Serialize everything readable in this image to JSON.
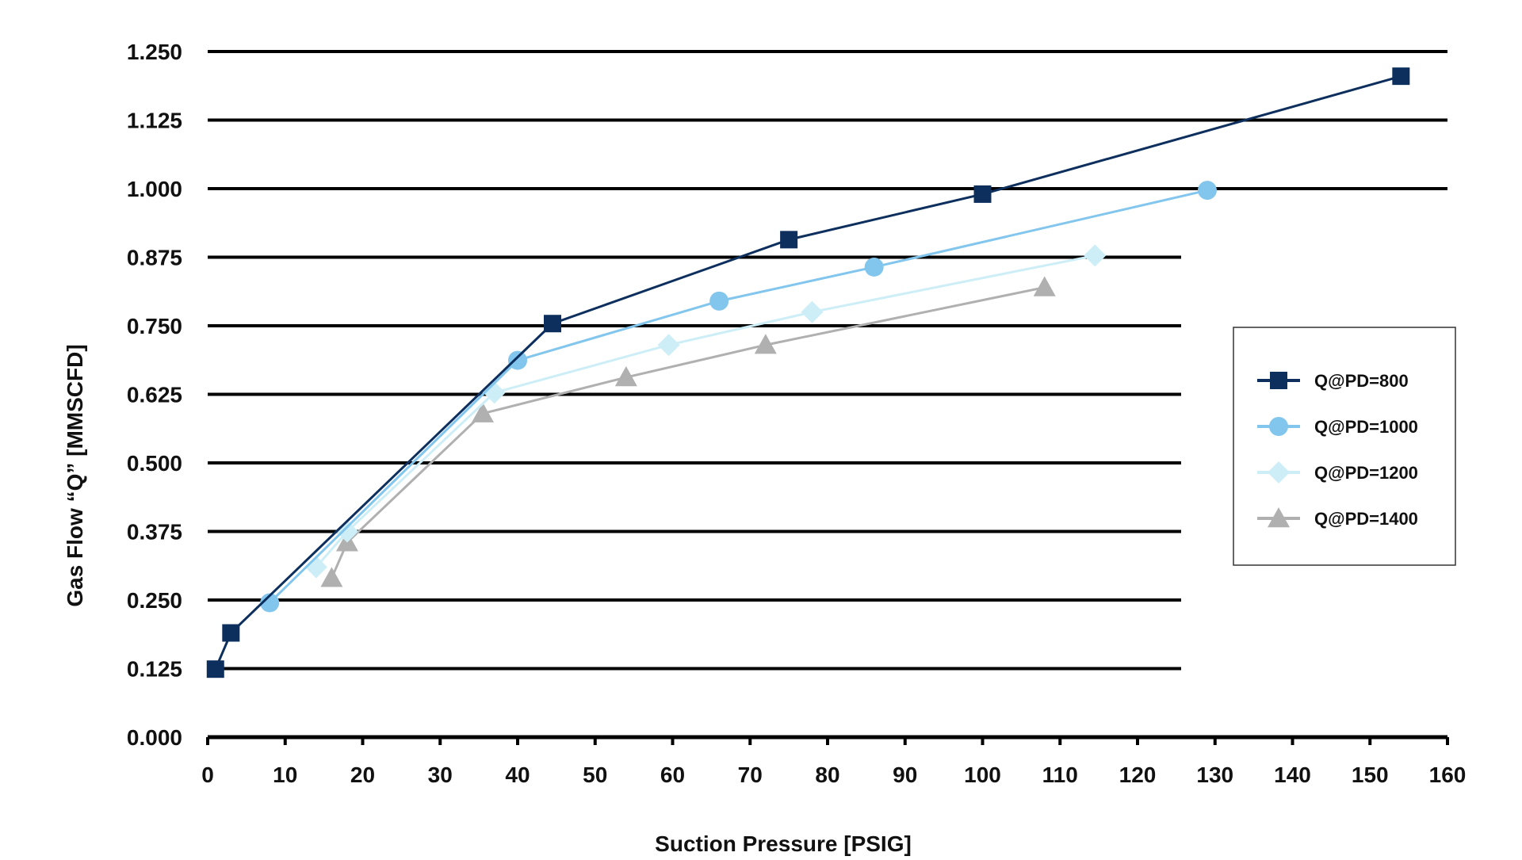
{
  "chart_data": {
    "type": "line",
    "title": "",
    "xlabel": "Suction Pressure [PSIG]",
    "ylabel": "Gas Flow “Q” [MMSCFD]",
    "xlim": [
      0,
      160
    ],
    "ylim": [
      0,
      1.25
    ],
    "xticks": [
      "0",
      "10",
      "20",
      "30",
      "40",
      "50",
      "60",
      "70",
      "80",
      "90",
      "100",
      "110",
      "120",
      "130",
      "140",
      "150",
      "160"
    ],
    "yticks": [
      "0.000",
      "0.125",
      "0.250",
      "0.375",
      "0.500",
      "0.625",
      "0.750",
      "0.875",
      "1.000",
      "1.125",
      "1.250"
    ],
    "grid": "horizontal",
    "legend_position": "right",
    "series": [
      {
        "name": "Q@PD=800",
        "color": "#0d2f5e",
        "marker": "square",
        "x": [
          1,
          3,
          44.5,
          75,
          100,
          154
        ],
        "y": [
          0.124,
          0.19,
          0.754,
          0.907,
          0.99,
          1.205
        ]
      },
      {
        "name": "Q@PD=1000",
        "color": "#82c6ee",
        "marker": "circle",
        "x": [
          8,
          40,
          66,
          86,
          129
        ],
        "y": [
          0.245,
          0.687,
          0.795,
          0.857,
          0.997
        ]
      },
      {
        "name": "Q@PD=1200",
        "color": "#cdeef7",
        "marker": "diamond",
        "x": [
          14,
          18,
          37,
          59.5,
          78,
          114.5
        ],
        "y": [
          0.31,
          0.375,
          0.628,
          0.715,
          0.775,
          0.878
        ]
      },
      {
        "name": "Q@PD=1400",
        "color": "#b0b0b0",
        "marker": "triangle",
        "x": [
          16,
          18,
          35.5,
          54,
          72,
          108
        ],
        "y": [
          0.29,
          0.355,
          0.59,
          0.656,
          0.715,
          0.82
        ]
      }
    ]
  }
}
